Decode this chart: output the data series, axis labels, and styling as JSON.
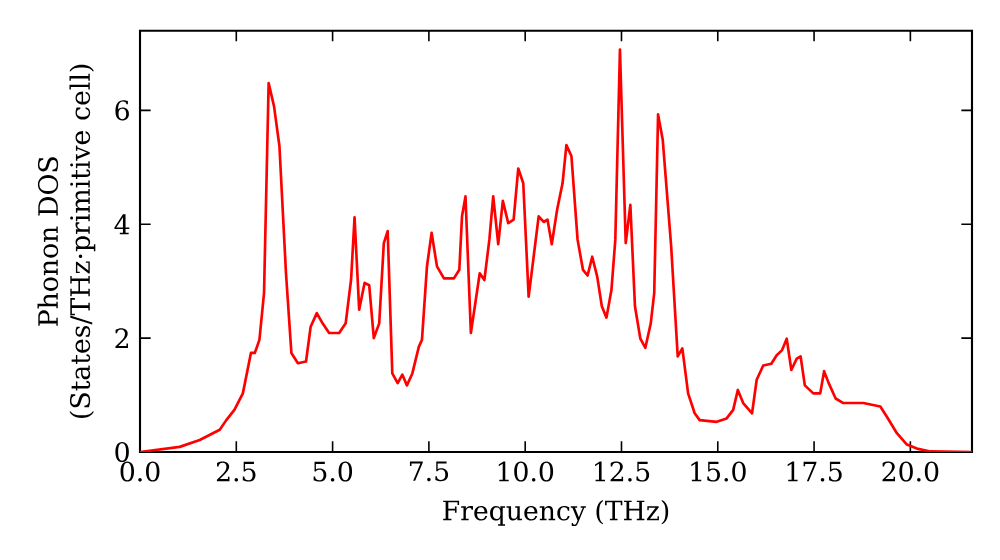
{
  "chart_data": {
    "type": "line",
    "xlabel": "Frequency (THz)",
    "ylabel": "Phonon DOS (States/THz·primitive cell)",
    "xlim": [
      0,
      21.6
    ],
    "ylim": [
      0,
      7.4
    ],
    "xticks": [
      {
        "value": 0,
        "label": "0.0"
      },
      {
        "value": 2.5,
        "label": "2.5"
      },
      {
        "value": 5,
        "label": "5.0"
      },
      {
        "value": 7.5,
        "label": "7.5"
      },
      {
        "value": 10,
        "label": "10.0"
      },
      {
        "value": 12.5,
        "label": "12.5"
      },
      {
        "value": 15,
        "label": "15.0"
      },
      {
        "value": 17.5,
        "label": "17.5"
      },
      {
        "value": 20,
        "label": "20.0"
      }
    ],
    "yticks": [
      0,
      2,
      4,
      6
    ],
    "series": [
      {
        "color": "#ff0000",
        "x": [
          0,
          1.03,
          1.55,
          2.07,
          2.24,
          2.45,
          2.67,
          2.88,
          2.98,
          3.1,
          3.22,
          3.34,
          3.48,
          3.62,
          3.79,
          3.93,
          4.1,
          4.31,
          4.43,
          4.59,
          4.74,
          4.91,
          5.17,
          5.34,
          5.48,
          5.57,
          5.69,
          5.83,
          5.95,
          6.07,
          6.21,
          6.33,
          6.43,
          6.55,
          6.69,
          6.81,
          6.93,
          7.07,
          7.24,
          7.32,
          7.45,
          7.57,
          7.71,
          7.89,
          8.15,
          8.29,
          8.36,
          8.45,
          8.59,
          8.82,
          8.94,
          9.07,
          9.17,
          9.3,
          9.42,
          9.56,
          9.7,
          9.82,
          9.95,
          10.09,
          10.21,
          10.35,
          10.48,
          10.58,
          10.69,
          10.83,
          10.97,
          11.07,
          11.2,
          11.36,
          11.5,
          11.62,
          11.74,
          11.87,
          11.99,
          12.11,
          12.24,
          12.34,
          12.46,
          12.61,
          12.73,
          12.85,
          12.99,
          13.12,
          13.26,
          13.35,
          13.45,
          13.57,
          13.79,
          13.96,
          14.08,
          14.23,
          14.4,
          14.53,
          14.97,
          15.23,
          15.4,
          15.52,
          15.66,
          15.89,
          16.01,
          16.18,
          16.39,
          16.53,
          16.67,
          16.79,
          16.91,
          17.05,
          17.15,
          17.26,
          17.48,
          17.66,
          17.76,
          17.88,
          18.06,
          18.26,
          18.78,
          19.22,
          19.39,
          19.65,
          19.91,
          20.17,
          20.52,
          21.6
        ],
        "values": [
          0,
          0.09,
          0.21,
          0.39,
          0.56,
          0.74,
          1.03,
          1.74,
          1.74,
          1.97,
          2.79,
          6.48,
          6.07,
          5.37,
          3.14,
          1.74,
          1.56,
          1.59,
          2.2,
          2.44,
          2.26,
          2.09,
          2.09,
          2.26,
          3.03,
          4.12,
          2.5,
          2.97,
          2.93,
          2.0,
          2.26,
          3.67,
          3.88,
          1.38,
          1.21,
          1.36,
          1.17,
          1.38,
          1.85,
          1.97,
          3.26,
          3.85,
          3.26,
          3.05,
          3.05,
          3.2,
          4.14,
          4.49,
          2.09,
          3.14,
          3.02,
          3.73,
          4.49,
          3.65,
          4.41,
          4.02,
          4.08,
          4.98,
          4.72,
          2.73,
          3.38,
          4.14,
          4.04,
          4.08,
          3.65,
          4.26,
          4.72,
          5.39,
          5.2,
          3.73,
          3.2,
          3.1,
          3.43,
          3.08,
          2.56,
          2.36,
          2.85,
          3.73,
          7.07,
          3.67,
          4.34,
          2.56,
          1.99,
          1.83,
          2.26,
          2.79,
          5.93,
          5.49,
          3.61,
          1.68,
          1.82,
          1.03,
          0.68,
          0.56,
          0.53,
          0.59,
          0.74,
          1.09,
          0.86,
          0.68,
          1.27,
          1.52,
          1.55,
          1.7,
          1.79,
          1.99,
          1.44,
          1.64,
          1.68,
          1.17,
          1.03,
          1.03,
          1.42,
          1.21,
          0.94,
          0.86,
          0.86,
          0.8,
          0.62,
          0.33,
          0.13,
          0.06,
          0.01,
          0
        ]
      }
    ]
  }
}
